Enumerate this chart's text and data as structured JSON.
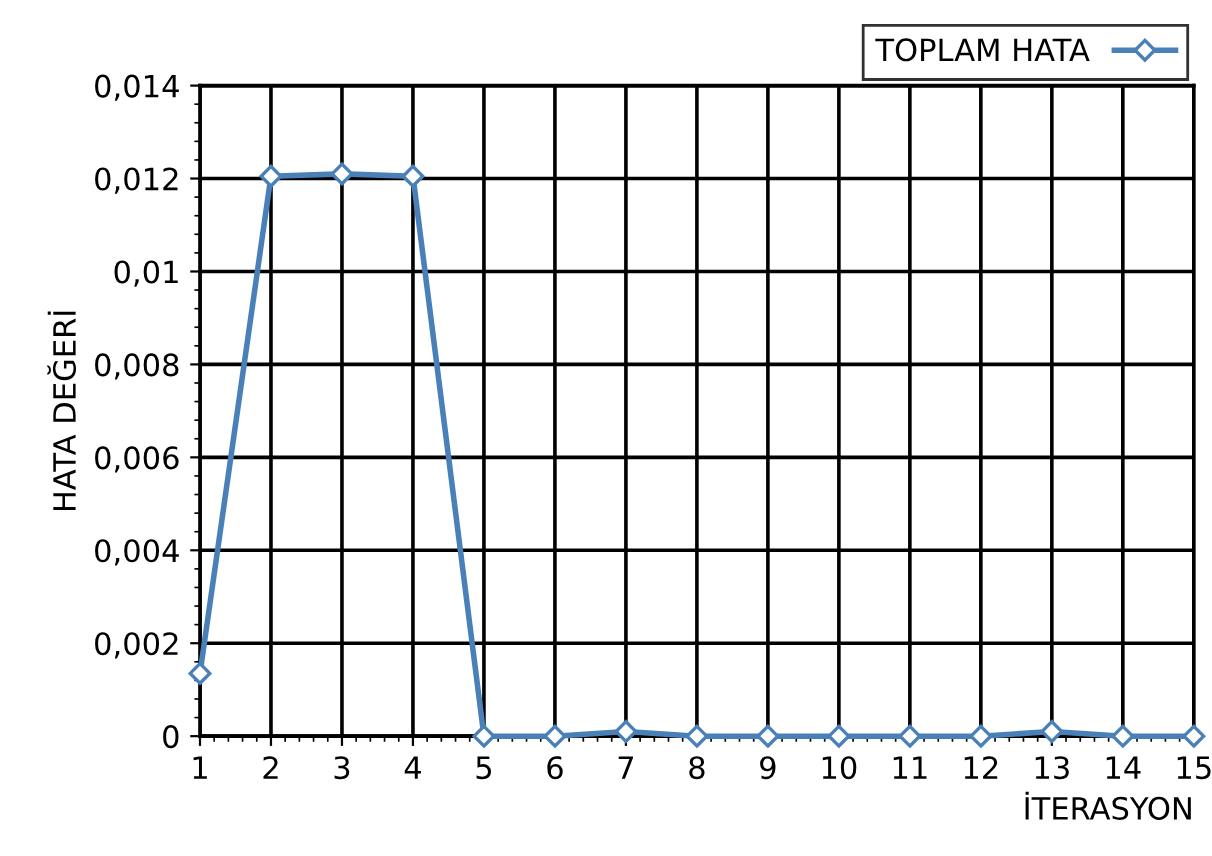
{
  "chart_data": {
    "type": "line",
    "xlabel": "İTERASYON",
    "ylabel": "HATA DEĞERİ",
    "x": [
      1,
      2,
      3,
      4,
      5,
      6,
      7,
      8,
      9,
      10,
      11,
      12,
      13,
      14,
      15
    ],
    "series": [
      {
        "name": "TOPLAM HATA",
        "color": "#4a80b8",
        "values": [
          0.00135,
          0.01205,
          0.0121,
          0.01205,
          0,
          0,
          0.0001,
          0,
          0,
          0,
          0,
          0,
          0.0001,
          0,
          0
        ]
      }
    ],
    "xlim": [
      1,
      15
    ],
    "xticks": [
      1,
      2,
      3,
      4,
      5,
      6,
      7,
      8,
      9,
      10,
      11,
      12,
      13,
      14,
      15
    ],
    "ylim": [
      0,
      0.014
    ],
    "yticks": [
      {
        "value": 0,
        "label": "0"
      },
      {
        "value": 0.002,
        "label": "0,002"
      },
      {
        "value": 0.004,
        "label": "0,004"
      },
      {
        "value": 0.006,
        "label": "0,006"
      },
      {
        "value": 0.008,
        "label": "0,008"
      },
      {
        "value": 0.01,
        "label": "0,01"
      },
      {
        "value": 0.012,
        "label": "0,012"
      },
      {
        "value": 0.014,
        "label": "0,014"
      }
    ],
    "grid": true,
    "legend": "top right",
    "marker": "diamond",
    "line_style": "solid"
  }
}
